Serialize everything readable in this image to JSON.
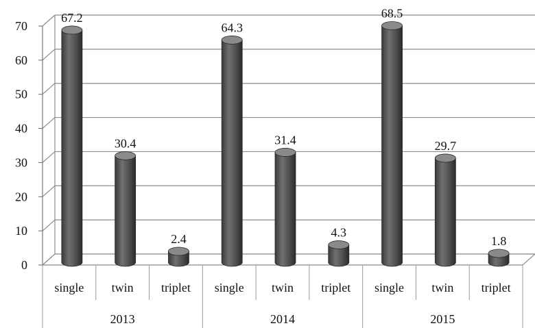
{
  "chart_data": {
    "type": "bar",
    "style": "3d-cylinder",
    "groups": [
      {
        "label": "2013",
        "categories": [
          "single",
          "twin",
          "triplet"
        ],
        "values": [
          67.2,
          30.4,
          2.4
        ]
      },
      {
        "label": "2014",
        "categories": [
          "single",
          "twin",
          "triplet"
        ],
        "values": [
          64.3,
          31.4,
          4.3
        ]
      },
      {
        "label": "2015",
        "categories": [
          "single",
          "twin",
          "triplet"
        ],
        "values": [
          68.5,
          29.7,
          1.8
        ]
      }
    ],
    "yticks": [
      "0",
      "10",
      "20",
      "30",
      "40",
      "50",
      "60",
      "70"
    ],
    "ylim": [
      0,
      70
    ],
    "grid": true,
    "legend": "none",
    "colors": {
      "bar": "#555555",
      "bar_light": "#8a8a8a",
      "bar_dark": "#2e2e2e",
      "grid": "#8c8c8c"
    }
  }
}
